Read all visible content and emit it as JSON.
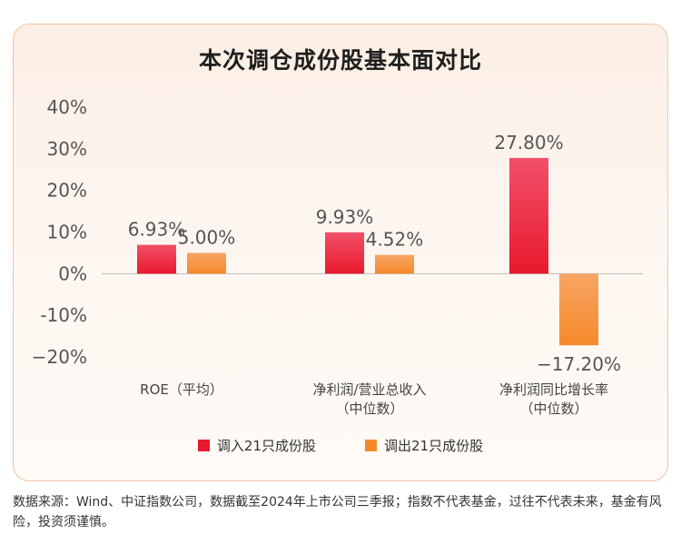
{
  "title": "本次调仓成份股基本面对比",
  "colors": {
    "series1": "#e8192c",
    "series2": "#f5892a"
  },
  "chart_data": {
    "type": "bar",
    "title": "本次调仓成份股基本面对比",
    "categories": [
      [
        "ROE（平均）"
      ],
      [
        "净利润/营业总收入",
        "（中位数）"
      ],
      [
        "净利润同比增长率",
        "（中位数）"
      ]
    ],
    "series": [
      {
        "name": "调入21只成份股",
        "values": [
          6.93,
          9.93,
          27.8
        ],
        "labels": [
          "6.93%",
          "9.93%",
          "27.80%"
        ]
      },
      {
        "name": "调出21只成份股",
        "values": [
          5.0,
          4.52,
          -17.2
        ],
        "labels": [
          "5.00%",
          "4.52%",
          "−17.20%"
        ]
      }
    ],
    "yticks": [
      "40%",
      "30%",
      "20%",
      "10%",
      "0%",
      "-10%",
      "−20%"
    ],
    "ylim": [
      -20,
      40
    ],
    "grid": false,
    "legend_position": "bottom"
  },
  "footnote": "数据来源：Wind、中证指数公司，数据截至2024年上市公司三季报；指数不代表基金，过往不代表未来，基金有风险，投资须谨慎。"
}
